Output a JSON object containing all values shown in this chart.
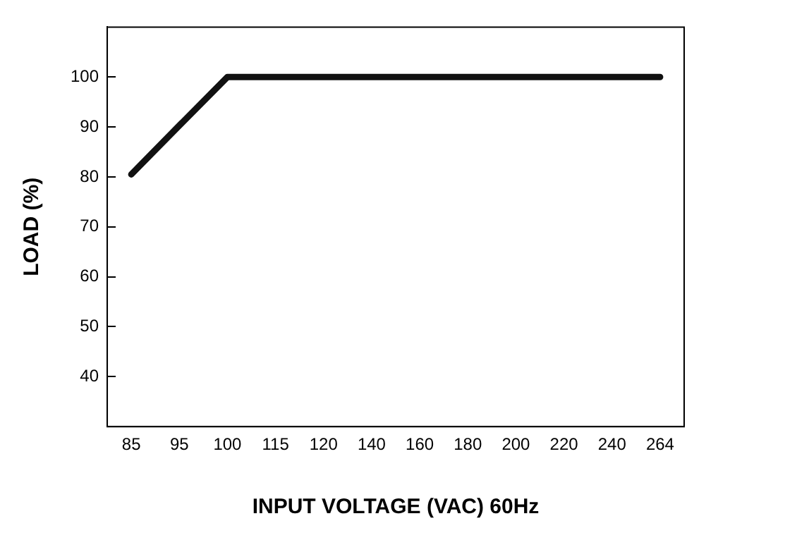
{
  "chart_data": {
    "type": "line",
    "xlabel": "INPUT VOLTAGE (VAC) 60Hz",
    "ylabel": "LOAD (%)",
    "categories": [
      "85",
      "95",
      "100",
      "115",
      "120",
      "140",
      "160",
      "180",
      "200",
      "220",
      "240",
      "264"
    ],
    "series": [
      {
        "color": "#111111",
        "values": [
          80.5,
          90.3,
          100,
          100,
          100,
          100,
          100,
          100,
          100,
          100,
          100,
          100
        ]
      }
    ],
    "ylim": [
      30,
      110
    ],
    "yticks": [
      40,
      50,
      60,
      70,
      80,
      90,
      100
    ],
    "grid": false,
    "legend": false,
    "marker": "none",
    "line_style": "solid"
  }
}
